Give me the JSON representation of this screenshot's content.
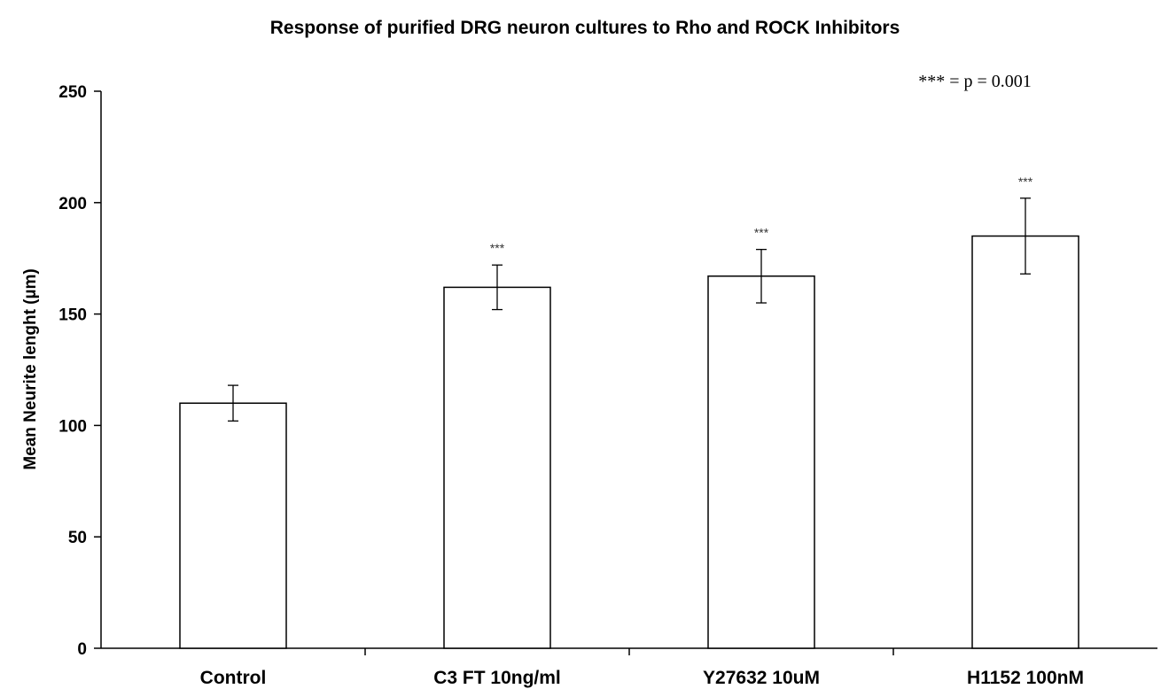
{
  "chart_data": {
    "type": "bar",
    "title": "Response of purified DRG neuron cultures to Rho and ROCK Inhibitors",
    "xlabel": "",
    "ylabel": "Mean Neurite lenght (µm)",
    "ylim": [
      0,
      250
    ],
    "yticks": [
      0,
      50,
      100,
      150,
      200,
      250
    ],
    "grid": false,
    "categories": [
      "Control",
      "C3 FT 10ng/ml",
      "Y27632 10uM",
      "H1152 100nM"
    ],
    "values": [
      110,
      162,
      167,
      185
    ],
    "errors": [
      8,
      10,
      12,
      17
    ],
    "significance": [
      "",
      "***",
      "***",
      "***"
    ],
    "annotation": "*** = p = 0.001"
  }
}
